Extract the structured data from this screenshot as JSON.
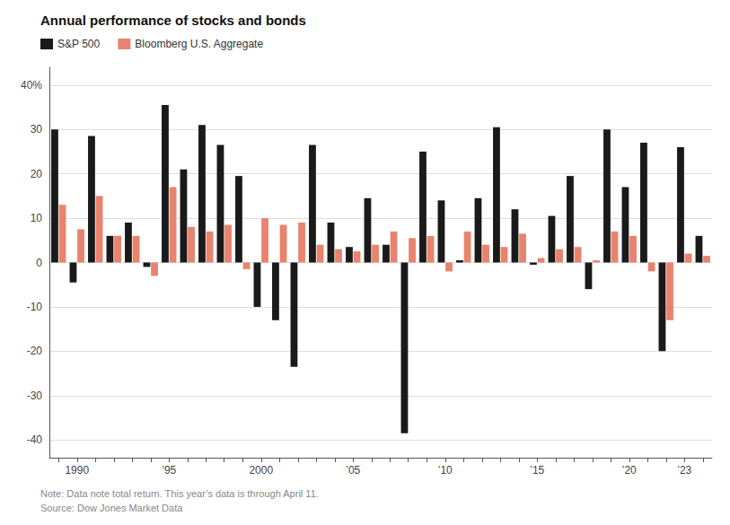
{
  "chart_data": {
    "type": "bar",
    "title": "Annual performance of stocks and bonds",
    "note": "Note: Data note total return. This year’s data is through April 11.\nSource: Dow Jones Market Data",
    "categories": [
      null,
      "1990",
      null,
      null,
      null,
      null,
      "’95",
      null,
      null,
      null,
      null,
      "2000",
      null,
      null,
      null,
      null,
      "’05",
      null,
      null,
      null,
      null,
      "’10",
      null,
      null,
      null,
      null,
      "’15",
      null,
      null,
      null,
      null,
      "’20",
      null,
      null,
      "’23",
      null
    ],
    "series": [
      {
        "name": "S&P 500",
        "color": "#1a1a1a",
        "values": [
          30.0,
          -4.5,
          28.5,
          6.0,
          9.0,
          -1.0,
          35.5,
          21.0,
          31.0,
          26.5,
          19.5,
          -10.0,
          -13.0,
          -23.5,
          26.5,
          9.0,
          3.5,
          14.5,
          4.0,
          -38.5,
          25.0,
          14.0,
          0.5,
          14.5,
          30.5,
          12.0,
          -0.5,
          10.5,
          19.5,
          -6.0,
          30.0,
          17.0,
          27.0,
          -20.0,
          26.0,
          6.0
        ]
      },
      {
        "name": "Bloomberg U.S. Aggregate",
        "color": "#e8836e",
        "values": [
          13.0,
          7.5,
          15.0,
          6.0,
          6.0,
          -3.0,
          17.0,
          8.0,
          7.0,
          8.5,
          -1.5,
          10.0,
          8.5,
          9.0,
          4.0,
          3.0,
          2.5,
          4.0,
          7.0,
          5.5,
          6.0,
          -2.0,
          7.0,
          4.0,
          3.5,
          6.5,
          1.0,
          3.0,
          3.5,
          0.5,
          7.0,
          6.0,
          -2.0,
          -13.0,
          2.0,
          1.5
        ]
      }
    ],
    "ylim": [
      -44,
      44
    ],
    "yticks": [
      -40,
      -30,
      -20,
      -10,
      0,
      10,
      20,
      30,
      {
        "value": 40,
        "label": "40%"
      }
    ],
    "grid": true,
    "legend": "upper left"
  }
}
